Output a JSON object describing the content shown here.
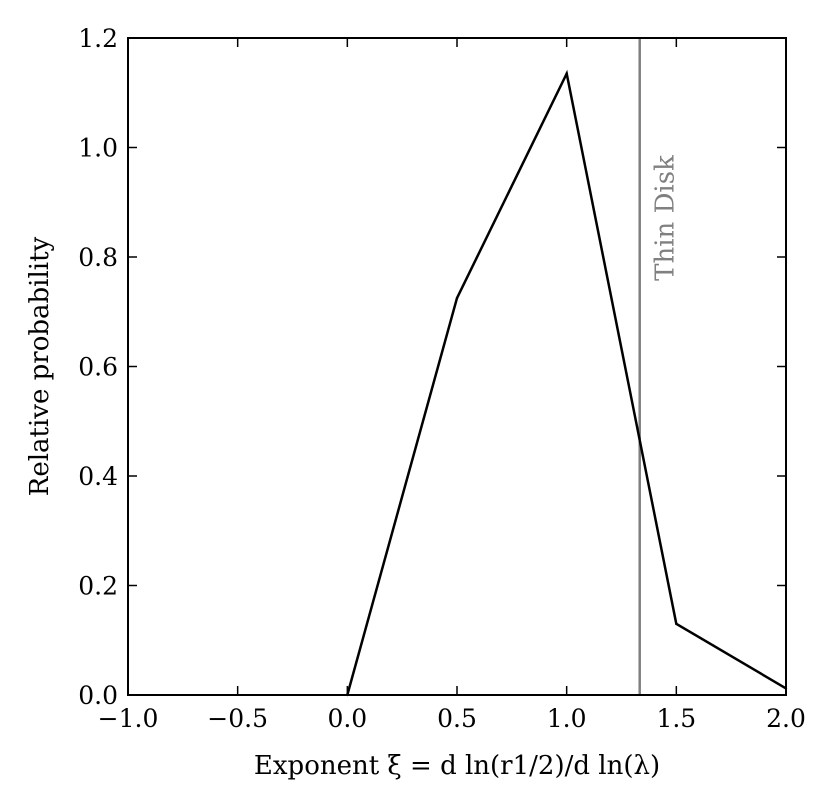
{
  "chart_data": {
    "type": "line",
    "title": "",
    "xlabel": "Exponent ξ = d ln(r1/2)/d ln(λ)",
    "ylabel": "Relative probability",
    "xlim": [
      -1.0,
      2.0
    ],
    "ylim": [
      0.0,
      1.2
    ],
    "xticks": [
      -1.0,
      -0.5,
      0.0,
      0.5,
      1.0,
      1.5,
      2.0
    ],
    "xtick_labels": [
      "−1.0",
      "−0.5",
      "0.0",
      "0.5",
      "1.0",
      "1.5",
      "2.0"
    ],
    "yticks": [
      0.0,
      0.2,
      0.4,
      0.6,
      0.8,
      1.0,
      1.2
    ],
    "ytick_labels": [
      "0.0",
      "0.2",
      "0.4",
      "0.6",
      "0.8",
      "1.0",
      "1.2"
    ],
    "grid": false,
    "series": [
      {
        "color": "#000000",
        "x": [
          0.0,
          0.5,
          1.0,
          1.5,
          2.0
        ],
        "y": [
          0.0,
          0.725,
          1.135,
          0.13,
          0.012
        ]
      }
    ],
    "annotations": [
      {
        "type": "vline",
        "x": 1.333,
        "color": "#808080",
        "text": "Thin Disk"
      }
    ]
  }
}
